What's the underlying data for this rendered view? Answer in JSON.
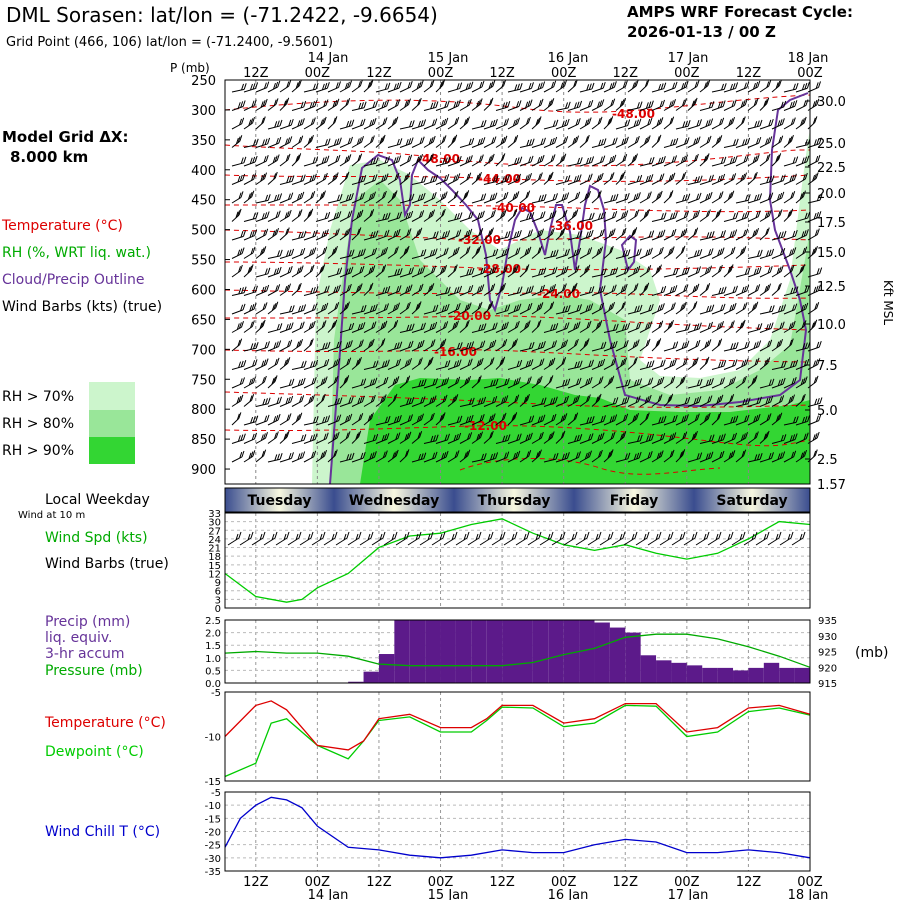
{
  "header": {
    "title": "DML Sorasen:  lat/lon = (-71.2422, -9.6654)",
    "grid_point": "Grid Point (466, 106) lat/lon = (-71.2400, -9.5601)",
    "cycle_label": "AMPS WRF Forecast Cycle:",
    "cycle_value": "2026-01-13 / 00  Z"
  },
  "left_panel": {
    "model_grid": "Model Grid ΔX:",
    "model_grid_value": "8.000 km",
    "legend_temperature": "Temperature (°C)",
    "legend_rh": "RH (%, WRT liq. wat.)",
    "legend_cloud": "Cloud/Precip Outline",
    "legend_wind": "Wind Barbs (kts) (true)",
    "rh_levels": [
      {
        "label": "RH > 70%",
        "color": "#ccf5cc"
      },
      {
        "label": "RH > 80%",
        "color": "#99e699"
      },
      {
        "label": "RH > 90%",
        "color": "#33d633"
      }
    ]
  },
  "colors": {
    "temperature": "#dd0000",
    "rh_text": "#00aa00",
    "cloud": "#663399",
    "precip_bar": "#5c1a8a",
    "dewpoint": "#00cc00",
    "pressure": "#00aa00",
    "windspeed": "#00cc00",
    "windchill": "#0000cc",
    "day_bar_dark": "#3a4d8f",
    "day_bar_light": "#f8f8e0"
  },
  "time_axis": {
    "top_dates": [
      "14 Jan",
      "15 Jan",
      "16 Jan",
      "17 Jan",
      "18 Jan"
    ],
    "hour_ticks": [
      "12Z",
      "00Z",
      "12Z",
      "00Z",
      "12Z",
      "00Z",
      "12Z",
      "00Z",
      "12Z",
      "00Z"
    ],
    "hours_span": [
      6,
      120
    ],
    "weekday_label": "Local Weekday",
    "wind_note": "Wind at 10 m",
    "weekdays": [
      "Tuesday",
      "Wednesday",
      "Thursday",
      "Friday",
      "Saturday"
    ]
  },
  "chart_data": [
    {
      "type": "time-height section",
      "title": "Temperature, RH, Cloud/Precip Outline, Wind Barbs",
      "ylabel_left": "P (mb)",
      "ylabel_right": "Kft MSL",
      "pressure_ticks": [
        "250",
        "300",
        "350",
        "400",
        "450",
        "500",
        "550",
        "600",
        "650",
        "700",
        "750",
        "800",
        "850",
        "900"
      ],
      "height_ticks": [
        "30.0",
        "25.0",
        "22.5",
        "20.0",
        "17.5",
        "15.0",
        "12.5",
        "10.0",
        "7.5",
        "5.0",
        "2.5",
        "1.57"
      ],
      "temperature_labels": [
        "-48.00",
        "-48.00",
        "-44.00",
        "-40.00",
        "-36.00",
        "-32.00",
        "-28.00",
        "-24.00",
        "-20.00",
        "-16.00",
        "-12.00"
      ]
    },
    {
      "type": "line",
      "title": "Wind Spd (kts)",
      "label_speed": "Wind Spd (kts)",
      "label_barbs": "Wind Barbs (true)",
      "ylim": [
        0,
        33
      ],
      "yticks": [
        "33",
        "30",
        "27",
        "24",
        "21",
        "18",
        "15",
        "12",
        "9",
        "6",
        "3",
        "0"
      ],
      "x_hours": [
        6,
        9,
        12,
        18,
        21,
        24,
        30,
        36,
        42,
        48,
        54,
        60,
        66,
        72,
        78,
        84,
        90,
        96,
        102,
        108,
        114,
        120
      ],
      "values": [
        12,
        8,
        4,
        2,
        3,
        7,
        12,
        21,
        25,
        26,
        29,
        31,
        26,
        22,
        20,
        22,
        19,
        17,
        19,
        24,
        30,
        29
      ]
    },
    {
      "type": "bar+line",
      "title": "Precip and Pressure",
      "label_precip": "Precip (mm)",
      "label_liq": "liq. equiv.",
      "label_accum": "3-hr accum",
      "label_pressure": "Pressure (mb)",
      "right_unit": "(mb)",
      "precip_ylim": [
        0,
        2.5
      ],
      "precip_yticks": [
        "2.5",
        "2.0",
        "1.5",
        "1.0",
        "0.5",
        "0.0"
      ],
      "pressure_ylim": [
        915,
        935
      ],
      "pressure_yticks": [
        "935",
        "930",
        "925",
        "920",
        "915"
      ],
      "precip_hours": [
        33,
        36,
        39,
        42,
        45,
        48,
        51,
        54,
        57,
        60,
        63,
        66,
        69,
        72,
        75,
        78,
        81,
        84,
        87,
        90,
        93,
        96,
        99,
        102,
        105,
        108,
        111,
        114,
        117,
        120
      ],
      "precip_values": [
        0.05,
        0.45,
        1.15,
        2.5,
        2.5,
        2.5,
        2.5,
        2.5,
        2.5,
        2.5,
        2.5,
        2.5,
        2.5,
        2.5,
        2.5,
        2.5,
        2.4,
        2.2,
        2.0,
        1.1,
        0.9,
        0.8,
        0.7,
        0.6,
        0.6,
        0.5,
        0.6,
        0.8,
        0.6,
        0.6
      ],
      "pressure_hours": [
        6,
        12,
        18,
        24,
        30,
        36,
        42,
        48,
        54,
        60,
        66,
        72,
        78,
        84,
        90,
        96,
        102,
        108,
        114,
        120
      ],
      "pressure_values": [
        924.5,
        925,
        924.5,
        924.5,
        923.5,
        921,
        920.5,
        920.5,
        920.5,
        920.5,
        921.5,
        924,
        926,
        929.5,
        930.5,
        930.5,
        929,
        926.5,
        923.5,
        920
      ]
    },
    {
      "type": "line",
      "title": "Temperature and Dewpoint",
      "label_temperature": "Temperature (°C)",
      "label_dewpoint": "Dewpoint (°C)",
      "ylim": [
        -15,
        -5
      ],
      "yticks": [
        "-5",
        "-10",
        "-15"
      ],
      "x_hours": [
        6,
        12,
        15,
        18,
        24,
        30,
        33,
        36,
        42,
        48,
        54,
        57,
        60,
        66,
        72,
        78,
        84,
        90,
        96,
        102,
        108,
        114,
        120
      ],
      "series": [
        {
          "name": "Temperature",
          "values": [
            -10,
            -6.5,
            -6,
            -7,
            -11,
            -11.5,
            -10.5,
            -8,
            -7.5,
            -9,
            -9,
            -8,
            -6.5,
            -6.5,
            -8.5,
            -8,
            -6.3,
            -6.3,
            -9.5,
            -9,
            -6.8,
            -6.5,
            -7.5
          ]
        },
        {
          "name": "Dewpoint",
          "values": [
            -14.5,
            -13,
            -8.5,
            -8,
            -11,
            -12.5,
            -10.5,
            -8.2,
            -7.8,
            -9.5,
            -9.5,
            -8.2,
            -6.7,
            -6.8,
            -8.9,
            -8.5,
            -6.5,
            -6.6,
            -10,
            -9.5,
            -7.2,
            -6.8,
            -7.6
          ]
        }
      ]
    },
    {
      "type": "line",
      "title": "Wind Chill T (°C)",
      "label": "Wind Chill T (°C)",
      "ylim": [
        -35,
        -5
      ],
      "yticks": [
        "-5",
        "-10",
        "-15",
        "-20",
        "-25",
        "-30",
        "-35"
      ],
      "x_hours": [
        6,
        9,
        12,
        15,
        18,
        21,
        24,
        30,
        36,
        42,
        48,
        54,
        60,
        66,
        72,
        78,
        84,
        90,
        96,
        102,
        108,
        114,
        120
      ],
      "values": [
        -26,
        -15,
        -10,
        -7,
        -8,
        -11,
        -18,
        -26,
        -27,
        -29,
        -30,
        -29,
        -27,
        -28,
        -28,
        -25,
        -23,
        -24,
        -28,
        -28,
        -27,
        -28,
        -30
      ]
    }
  ]
}
